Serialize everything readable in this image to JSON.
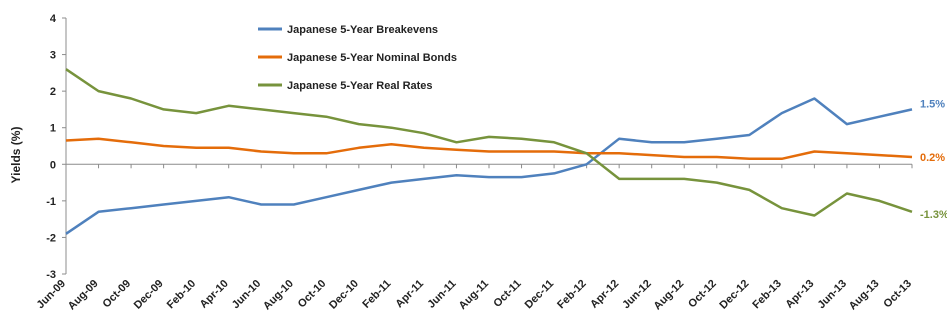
{
  "chart_data": {
    "type": "line",
    "ylabel": "Yields (%)",
    "ylim": [
      -3,
      4
    ],
    "yticks": [
      "4",
      "3",
      "2",
      "1",
      "0",
      "-1",
      "-2",
      "-3"
    ],
    "xlabels": [
      "Jun-09",
      "Aug-09",
      "Oct-09",
      "Dec-09",
      "Feb-10",
      "Apr-10",
      "Jun-10",
      "Aug-10",
      "Oct-10",
      "Dec-10",
      "Feb-11",
      "Apr-11",
      "Jun-11",
      "Aug-11",
      "Oct-11",
      "Dec-11",
      "Feb-12",
      "Apr-12",
      "Jun-12",
      "Aug-12",
      "Oct-12",
      "Dec-12",
      "Feb-13",
      "Apr-13",
      "Jun-13",
      "Aug-13",
      "Oct-13"
    ],
    "legend_position": "top-left",
    "grid": false,
    "series": [
      {
        "name": "Japanese 5-Year Breakevens",
        "color": "#4f81bd",
        "end_label": "1.5%",
        "values": [
          -1.9,
          -1.3,
          -1.2,
          -1.1,
          -1.0,
          -0.9,
          -1.1,
          -1.1,
          -0.9,
          -0.7,
          -0.5,
          -0.4,
          -0.3,
          -0.35,
          -0.35,
          -0.25,
          0.0,
          0.7,
          0.6,
          0.6,
          0.7,
          0.8,
          1.4,
          1.8,
          1.1,
          1.3,
          1.5
        ]
      },
      {
        "name": "Japanese 5-Year Nominal Bonds",
        "color": "#e46c0a",
        "end_label": "0.2%",
        "values": [
          0.65,
          0.7,
          0.6,
          0.5,
          0.45,
          0.45,
          0.35,
          0.3,
          0.3,
          0.45,
          0.55,
          0.45,
          0.4,
          0.35,
          0.35,
          0.35,
          0.3,
          0.3,
          0.25,
          0.2,
          0.2,
          0.15,
          0.15,
          0.35,
          0.3,
          0.25,
          0.2
        ]
      },
      {
        "name": "Japanese 5-Year Real Rates",
        "color": "#77933c",
        "end_label": "-1.3%",
        "values": [
          2.6,
          2.0,
          1.8,
          1.5,
          1.4,
          1.6,
          1.5,
          1.4,
          1.3,
          1.1,
          1.0,
          0.85,
          0.6,
          0.75,
          0.7,
          0.6,
          0.3,
          -0.4,
          -0.4,
          -0.4,
          -0.5,
          -0.7,
          -1.2,
          -1.4,
          -0.8,
          -1.0,
          -1.3
        ]
      }
    ]
  }
}
